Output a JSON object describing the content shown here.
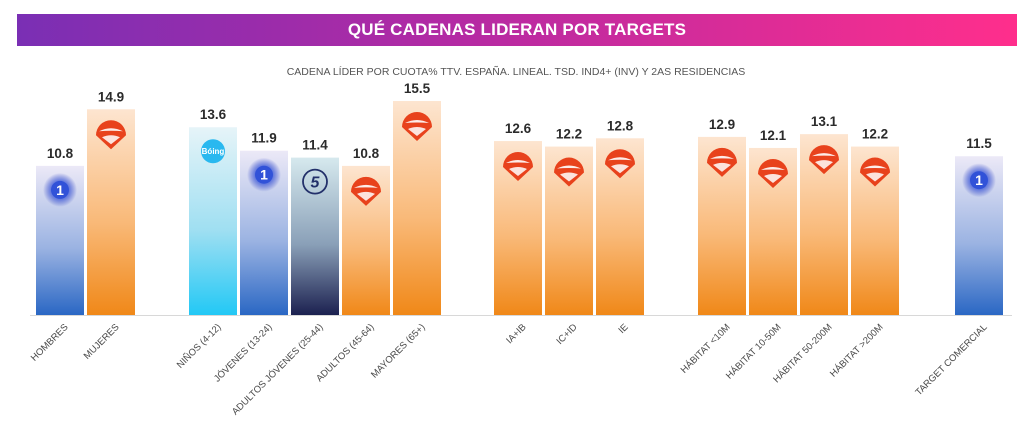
{
  "header": {
    "banner_title": "QUÉ CADENAS LIDERAN POR TARGETS",
    "subtitle": "CADENA LÍDER POR CUOTA% TTV. ESPAÑA. LINEAL. TSD. IND4+ (INV) Y 2AS RESIDENCIAS"
  },
  "colors": {
    "banner_left": "#7a2fb4",
    "banner_right": "#ff2e8c",
    "la1_blue": "#2a67c4",
    "antena3_orange": "#f28a1f",
    "antena3_red": "#e8421c",
    "clan_cyan": "#2bc8f2",
    "cuatro_navy": "#1e2454"
  },
  "chart_data": {
    "type": "bar",
    "categories": [
      "HOMBRES",
      "MUJERES",
      "NIÑOS (4-12)",
      "JÓVENES (13-24)",
      "ADULTOS JÓVENES (25-44)",
      "ADULTOS (45-64)",
      "MAYORES (65+)",
      "IA+IB",
      "IC+ID",
      "IE",
      "HÁBITAT <10M",
      "HÁBITAT 10-50M",
      "HÁBITAT 50-200M",
      "HÁBITAT >200M",
      "TARGET COMERCIAL"
    ],
    "values": [
      10.8,
      14.9,
      13.6,
      11.9,
      11.4,
      10.8,
      15.5,
      12.6,
      12.2,
      12.8,
      12.9,
      12.1,
      13.1,
      12.2,
      11.5
    ],
    "leader_channel": [
      "la1",
      "antena3",
      "boing",
      "la1",
      "cuatro",
      "antena3",
      "antena3",
      "antena3",
      "antena3",
      "antena3",
      "antena3",
      "antena3",
      "antena3",
      "antena3",
      "la1"
    ],
    "groups": [
      [
        0,
        1
      ],
      [
        2,
        3,
        4,
        5,
        6
      ],
      [
        7,
        8,
        9
      ],
      [
        10,
        11,
        12,
        13
      ],
      [
        14
      ]
    ],
    "data_labels": [
      "10.8",
      "14.9",
      "13.6",
      "11.9",
      "11.4",
      "10.8",
      "15.5",
      "12.6",
      "12.2",
      "12.8",
      "12.9",
      "12.1",
      "13.1",
      "12.2",
      "11.5"
    ],
    "logo_text": {
      "la1": "1",
      "boing": "Bóing",
      "cuatro": "5"
    },
    "ylim": [
      0,
      15.5
    ],
    "grid": false,
    "legend": "none"
  }
}
